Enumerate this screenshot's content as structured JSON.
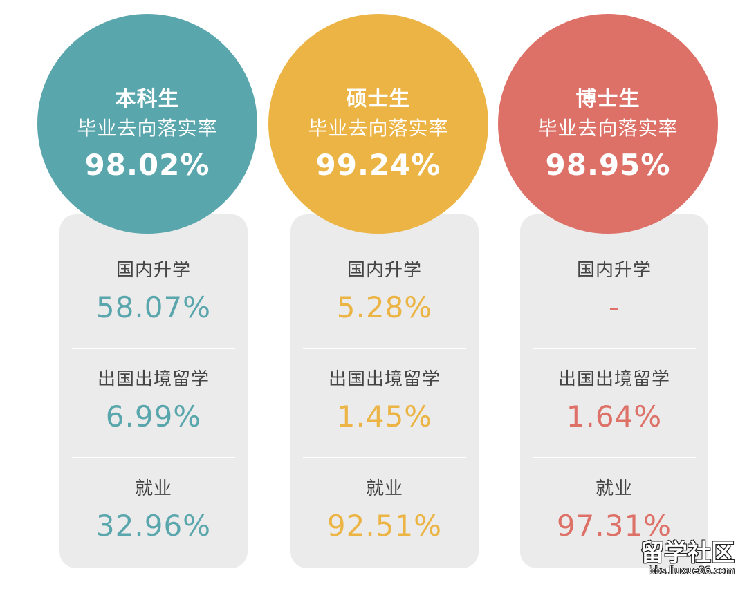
{
  "chart_data": {
    "type": "table",
    "columns": [
      {
        "level": "本科生",
        "caption": "毕业去向落实率",
        "rate": "98.02%",
        "color": "#5aa6ad",
        "rows": [
          {
            "label": "国内升学",
            "value": "58.07%"
          },
          {
            "label": "出国出境留学",
            "value": "6.99%"
          },
          {
            "label": "就业",
            "value": "32.96%"
          }
        ]
      },
      {
        "level": "硕士生",
        "caption": "毕业去向落实率",
        "rate": "99.24%",
        "color": "#ebb444",
        "rows": [
          {
            "label": "国内升学",
            "value": "5.28%"
          },
          {
            "label": "出国出境留学",
            "value": "1.45%"
          },
          {
            "label": "就业",
            "value": "92.51%"
          }
        ]
      },
      {
        "level": "博士生",
        "caption": "毕业去向落实率",
        "rate": "98.95%",
        "color": "#dd7168",
        "rows": [
          {
            "label": "国内升学",
            "value": "-"
          },
          {
            "label": "出国出境留学",
            "value": "1.64%"
          },
          {
            "label": "就业",
            "value": "97.31%"
          }
        ]
      }
    ]
  },
  "watermark": {
    "main": "留学社区",
    "sub": "bbs.liuxue86.com"
  }
}
